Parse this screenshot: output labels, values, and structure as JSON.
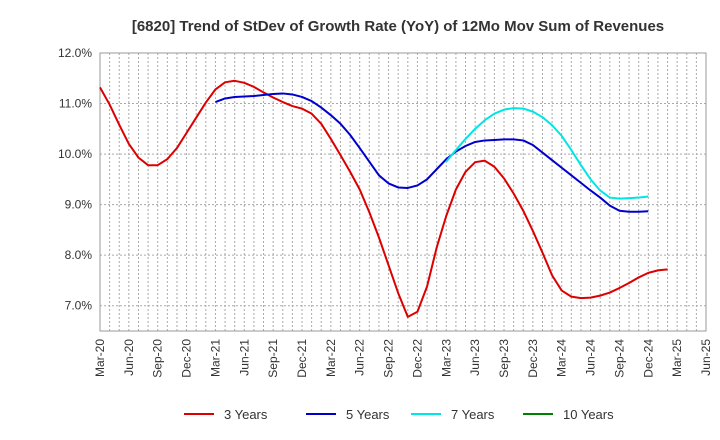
{
  "chart_data": {
    "type": "line",
    "title": "[6820]  Trend of StDev of Growth Rate (YoY) of 12Mo Mov Sum of Revenues",
    "xlabel": "",
    "ylabel": "",
    "ylim": [
      6.5,
      12.0
    ],
    "yticks": [
      7.0,
      8.0,
      9.0,
      10.0,
      11.0,
      12.0
    ],
    "ytick_labels": [
      "7.0%",
      "8.0%",
      "9.0%",
      "10.0%",
      "11.0%",
      "12.0%"
    ],
    "x_start": "Mar-20",
    "x_end_month_index": 63,
    "xtick_labels": [
      "Mar-20",
      "Jun-20",
      "Sep-20",
      "Dec-20",
      "Mar-21",
      "Jun-21",
      "Sep-21",
      "Dec-21",
      "Mar-22",
      "Jun-22",
      "Sep-22",
      "Dec-22",
      "Mar-23",
      "Jun-23",
      "Sep-23",
      "Dec-23",
      "Mar-24",
      "Jun-24",
      "Sep-24",
      "Dec-24",
      "Mar-25",
      "Jun-25"
    ],
    "grid": true,
    "legend_position": "bottom",
    "series": [
      {
        "name": "3 Years",
        "color": "#dd0000",
        "start_index": 0,
        "values": [
          11.32,
          10.98,
          10.58,
          10.2,
          9.93,
          9.78,
          9.78,
          9.9,
          10.12,
          10.42,
          10.72,
          11.02,
          11.28,
          11.42,
          11.45,
          11.41,
          11.33,
          11.22,
          11.12,
          11.03,
          10.95,
          10.9,
          10.8,
          10.6,
          10.3,
          9.98,
          9.65,
          9.3,
          8.85,
          8.35,
          7.8,
          7.25,
          6.78,
          6.88,
          7.38,
          8.15,
          8.78,
          9.3,
          9.65,
          9.84,
          9.87,
          9.75,
          9.52,
          9.22,
          8.88,
          8.48,
          8.05,
          7.6,
          7.3,
          7.18,
          7.15,
          7.16,
          7.2,
          7.26,
          7.35,
          7.45,
          7.56,
          7.65,
          7.7,
          7.72
        ]
      },
      {
        "name": "5 Years",
        "color": "#0000cc",
        "start_index": 12,
        "values": [
          11.03,
          11.1,
          11.13,
          11.14,
          11.15,
          11.17,
          11.19,
          11.2,
          11.18,
          11.13,
          11.05,
          10.92,
          10.77,
          10.6,
          10.38,
          10.12,
          9.85,
          9.58,
          9.42,
          9.34,
          9.33,
          9.38,
          9.5,
          9.7,
          9.9,
          10.05,
          10.16,
          10.24,
          10.27,
          10.28,
          10.29,
          10.29,
          10.27,
          10.18,
          10.03,
          9.88,
          9.73,
          9.58,
          9.43,
          9.28,
          9.14,
          8.98,
          8.88,
          8.86,
          8.86,
          8.87
        ]
      },
      {
        "name": "7 Years",
        "color": "#00e5e5",
        "start_index": 36,
        "values": [
          9.85,
          10.08,
          10.3,
          10.5,
          10.67,
          10.8,
          10.88,
          10.91,
          10.9,
          10.84,
          10.73,
          10.57,
          10.36,
          10.08,
          9.78,
          9.5,
          9.28,
          9.14,
          9.12,
          9.13,
          9.14,
          9.16
        ]
      },
      {
        "name": "10 Years",
        "color": "#008000",
        "start_index": 0,
        "values": []
      }
    ]
  }
}
